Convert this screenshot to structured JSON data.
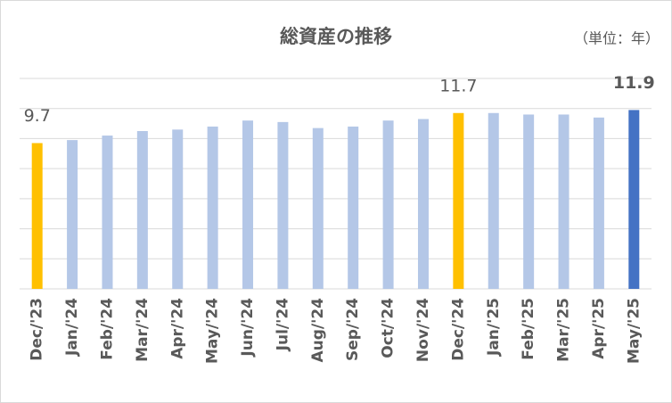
{
  "chart_data": {
    "type": "bar",
    "title": "総資産の推移",
    "subtitle": "（単位：年）",
    "categories": [
      "Dec/'23",
      "Jan/'24",
      "Feb/'24",
      "Mar/'24",
      "Apr/'24",
      "May/'24",
      "Jun/'24",
      "Jul/'24",
      "Aug/'24",
      "Sep/'24",
      "Oct/'24",
      "Nov/'24",
      "Dec/'24",
      "Jan/'25",
      "Feb/'25",
      "Mar/'25",
      "Apr/'25",
      "May/'25"
    ],
    "values": [
      9.7,
      9.9,
      10.2,
      10.5,
      10.6,
      10.8,
      11.2,
      11.1,
      10.7,
      10.8,
      11.2,
      11.3,
      11.7,
      11.7,
      11.6,
      11.6,
      11.4,
      11.9
    ],
    "value_labels": [
      "9.7",
      null,
      null,
      null,
      null,
      null,
      null,
      null,
      null,
      null,
      null,
      null,
      "11.7",
      null,
      null,
      null,
      null,
      "11.9"
    ],
    "colors": [
      "#ffc000",
      "#b4c7e7",
      "#b4c7e7",
      "#b4c7e7",
      "#b4c7e7",
      "#b4c7e7",
      "#b4c7e7",
      "#b4c7e7",
      "#b4c7e7",
      "#b4c7e7",
      "#b4c7e7",
      "#b4c7e7",
      "#ffc000",
      "#b4c7e7",
      "#b4c7e7",
      "#b4c7e7",
      "#b4c7e7",
      "#4472c4"
    ],
    "ylim": [
      0,
      14
    ],
    "yticks": [
      0,
      2,
      4,
      6,
      8,
      10,
      12,
      14
    ],
    "grid": true
  }
}
